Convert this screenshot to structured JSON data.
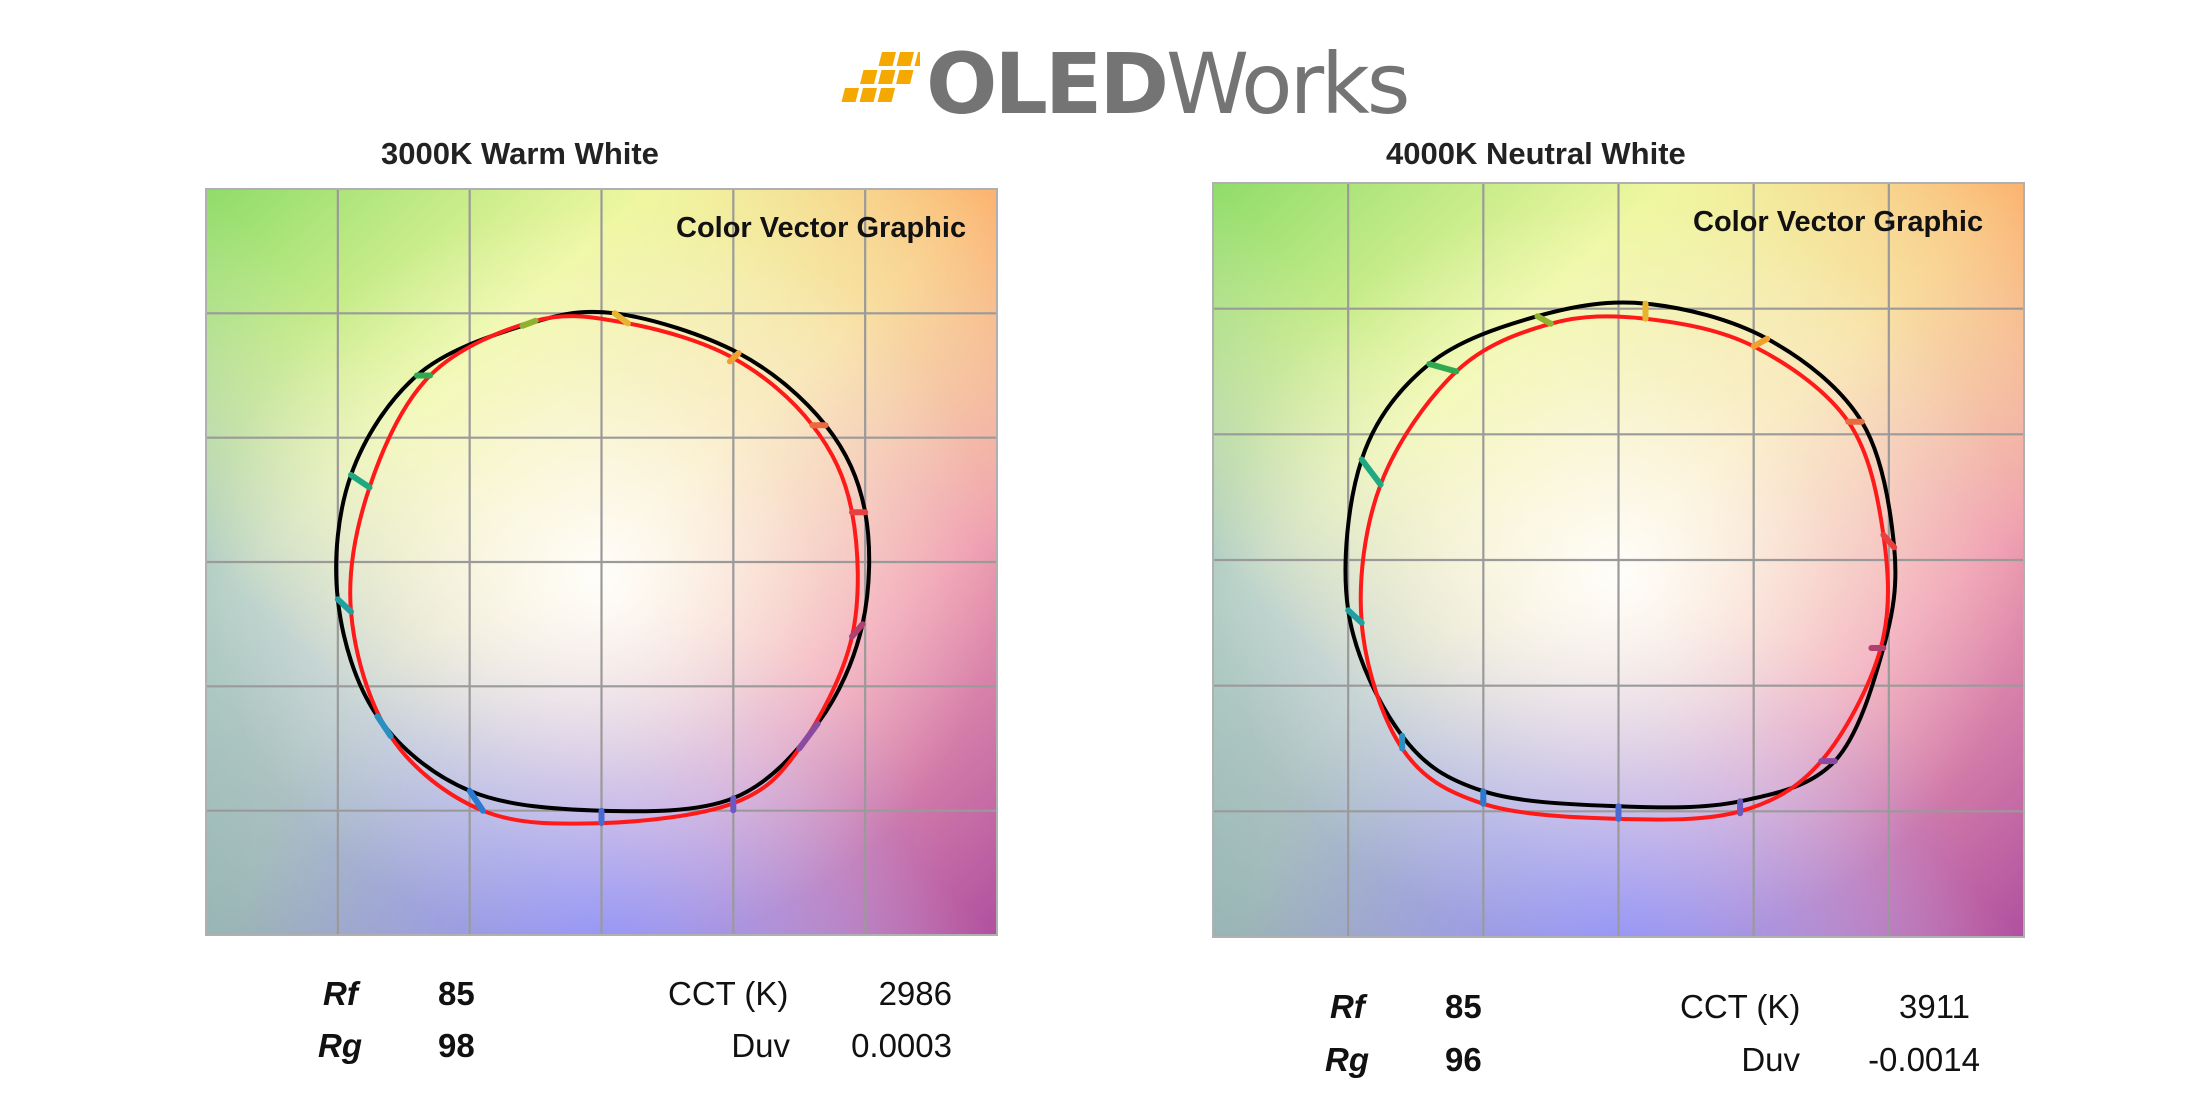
{
  "logo": {
    "text_bold": "OLED",
    "text_regular": "Works",
    "brand_color": "#747474",
    "mark_color": "#F5A800"
  },
  "colors": {
    "reference_curve": "#000000",
    "test_curve": "#ff1a1a",
    "grid": "#9a9a9a"
  },
  "chart_data": [
    {
      "type": "line",
      "title": "3000K Warm White",
      "annotation": "Color Vector Graphic",
      "grid": true,
      "xlim": [
        -1.5,
        1.5
      ],
      "ylim": [
        -1.5,
        1.5
      ],
      "series": [
        {
          "key": "reference",
          "points": [
            [
              0.05,
              1.0
            ],
            [
              0.52,
              0.84
            ],
            [
              0.85,
              0.55
            ],
            [
              1.0,
              0.2
            ],
            [
              0.99,
              -0.25
            ],
            [
              0.82,
              -0.65
            ],
            [
              0.5,
              -0.95
            ],
            [
              0.0,
              -1.0
            ],
            [
              -0.5,
              -0.92
            ],
            [
              -0.85,
              -0.62
            ],
            [
              -1.0,
              -0.15
            ],
            [
              -0.95,
              0.35
            ],
            [
              -0.7,
              0.75
            ],
            [
              -0.3,
              0.95
            ]
          ]
        },
        {
          "key": "test",
          "points": [
            [
              0.1,
              0.96
            ],
            [
              0.5,
              0.82
            ],
            [
              0.8,
              0.55
            ],
            [
              0.95,
              0.2
            ],
            [
              0.95,
              -0.3
            ],
            [
              0.75,
              -0.75
            ],
            [
              0.5,
              -0.97
            ],
            [
              0.0,
              -1.05
            ],
            [
              -0.45,
              -1.0
            ],
            [
              -0.8,
              -0.7
            ],
            [
              -0.95,
              -0.2
            ],
            [
              -0.88,
              0.3
            ],
            [
              -0.65,
              0.75
            ],
            [
              -0.25,
              0.97
            ]
          ]
        }
      ]
    },
    {
      "type": "line",
      "title": "4000K Neutral White",
      "annotation": "Color Vector Graphic",
      "grid": true,
      "xlim": [
        -1.5,
        1.5
      ],
      "ylim": [
        -1.5,
        1.5
      ],
      "series": [
        {
          "key": "reference",
          "points": [
            [
              0.1,
              1.02
            ],
            [
              0.55,
              0.88
            ],
            [
              0.9,
              0.55
            ],
            [
              1.02,
              0.05
            ],
            [
              0.98,
              -0.35
            ],
            [
              0.8,
              -0.8
            ],
            [
              0.45,
              -0.96
            ],
            [
              0.0,
              -0.98
            ],
            [
              -0.5,
              -0.92
            ],
            [
              -0.8,
              -0.7
            ],
            [
              -1.0,
              -0.2
            ],
            [
              -0.95,
              0.4
            ],
            [
              -0.7,
              0.78
            ],
            [
              -0.3,
              0.97
            ]
          ]
        },
        {
          "key": "test",
          "points": [
            [
              0.1,
              0.96
            ],
            [
              0.5,
              0.85
            ],
            [
              0.85,
              0.55
            ],
            [
              0.98,
              0.1
            ],
            [
              0.97,
              -0.35
            ],
            [
              0.75,
              -0.8
            ],
            [
              0.45,
              -1.0
            ],
            [
              0.0,
              -1.03
            ],
            [
              -0.5,
              -0.97
            ],
            [
              -0.8,
              -0.75
            ],
            [
              -0.95,
              -0.25
            ],
            [
              -0.88,
              0.3
            ],
            [
              -0.6,
              0.75
            ],
            [
              -0.25,
              0.94
            ]
          ]
        }
      ]
    }
  ],
  "metrics": [
    {
      "rf_label": "Rf",
      "rf_value": "85",
      "rg_label": "Rg",
      "rg_value": "98",
      "cct_label": "CCT (K)",
      "cct_value": "2986",
      "duv_label": "Duv",
      "duv_value": "0.0003"
    },
    {
      "rf_label": "Rf",
      "rf_value": "85",
      "rg_label": "Rg",
      "rg_value": "96",
      "cct_label": "CCT (K)",
      "cct_value": "3911",
      "duv_label": "Duv",
      "duv_value": "-0.0014"
    }
  ]
}
